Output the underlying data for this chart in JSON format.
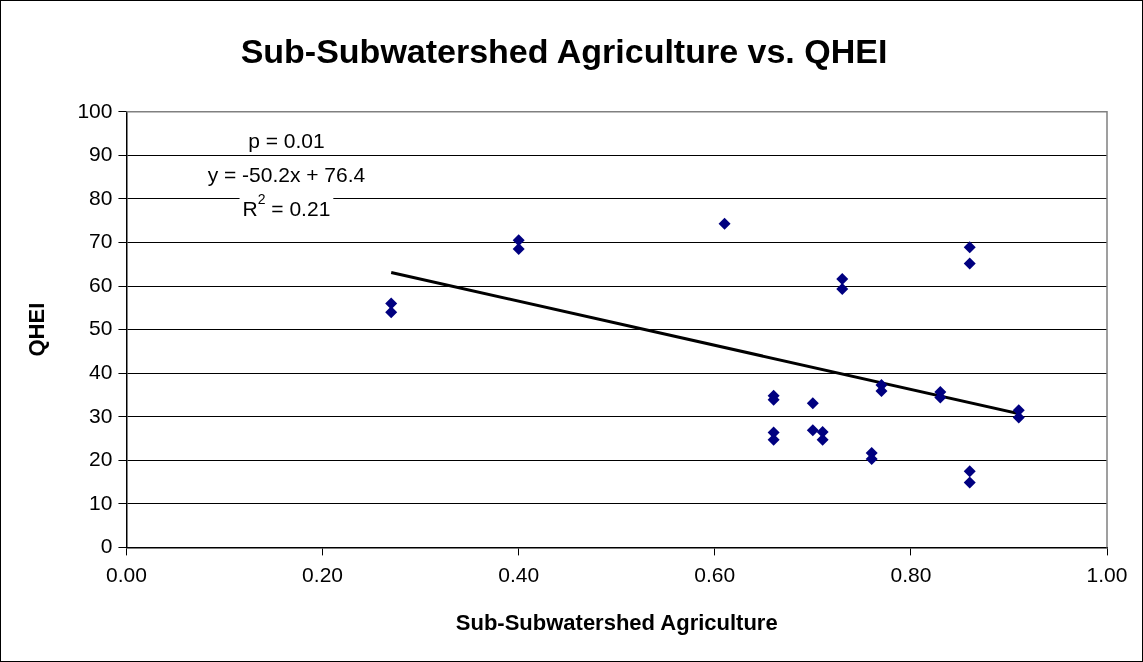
{
  "chart_data": {
    "type": "scatter",
    "title": "Sub-Subwatershed Agriculture vs. QHEI",
    "xlabel": "Sub-Subwatershed Agriculture",
    "ylabel": "QHEI",
    "x": [
      0.27,
      0.27,
      0.4,
      0.4,
      0.61,
      0.66,
      0.66,
      0.66,
      0.66,
      0.7,
      0.7,
      0.71,
      0.71,
      0.73,
      0.73,
      0.76,
      0.76,
      0.77,
      0.77,
      0.83,
      0.83,
      0.86,
      0.86,
      0.86,
      0.86,
      0.91,
      0.91
    ],
    "series": [
      {
        "color": "#000080",
        "marker": "diamond",
        "values": [
          56,
          54,
          70.5,
          68.5,
          74.3,
          34.8,
          33.9,
          26.4,
          24.7,
          33.1,
          26.9,
          26.5,
          24.7,
          61.6,
          59.3,
          21.7,
          20.3,
          37.3,
          35.9,
          35.7,
          34.4,
          68.9,
          65.2,
          17.5,
          14.9,
          31.5,
          29.8
        ]
      },
      {
        "type": "line",
        "color": "#000000",
        "marker": "none",
        "x": [
          0.27,
          0.91
        ],
        "values": [
          63.1,
          30.7
        ]
      }
    ],
    "xlim": [
      0,
      1
    ],
    "xticks": [
      {
        "value": 0,
        "label": "0.00"
      },
      {
        "value": 0.2,
        "label": "0.20"
      },
      {
        "value": 0.4,
        "label": "0.40"
      },
      {
        "value": 0.6,
        "label": "0.60"
      },
      {
        "value": 0.8,
        "label": "0.80"
      },
      {
        "value": 1,
        "label": "1.00"
      }
    ],
    "ylim": [
      0,
      100
    ],
    "yticks": [
      0,
      10,
      20,
      30,
      40,
      50,
      60,
      70,
      80,
      90,
      100
    ],
    "grid": "y",
    "legend": false,
    "annotations": [
      "p = 0.01",
      "y = -50.2x + 76.4",
      "R$^{2}$ = 0.21"
    ]
  }
}
